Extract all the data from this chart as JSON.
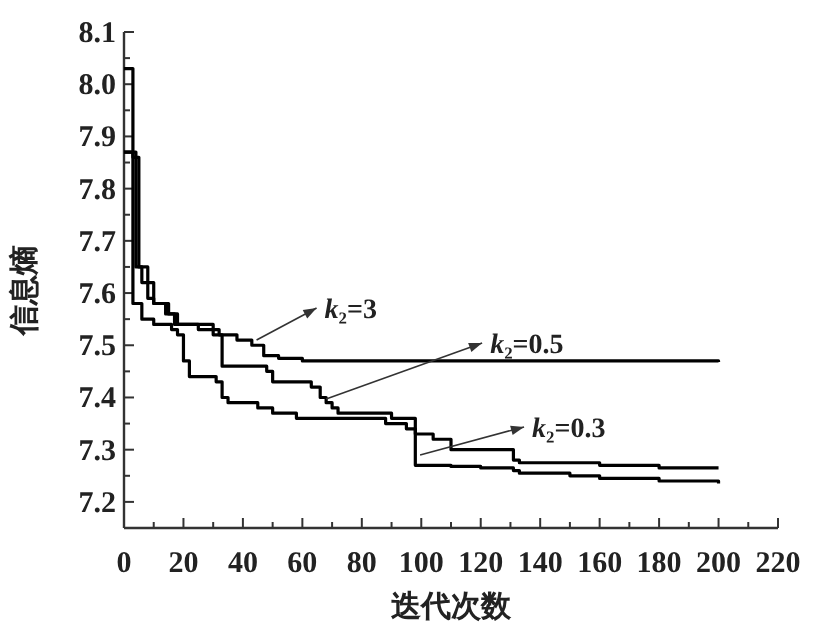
{
  "chart_data": {
    "type": "step",
    "xlabel": "迭代次数",
    "ylabel": "信息熵",
    "xlim": [
      0,
      220
    ],
    "ylim": [
      7.15,
      8.1
    ],
    "xticks": [
      0,
      20,
      40,
      60,
      80,
      100,
      120,
      140,
      160,
      180,
      200,
      220
    ],
    "yticks": [
      7.2,
      7.3,
      7.4,
      7.5,
      7.6,
      7.7,
      7.8,
      7.9,
      {
        "value": 8.0,
        "label": "8.0"
      },
      8.1
    ],
    "line_style": "solid",
    "grid": false,
    "annotations": [
      {
        "text": "k₂=3",
        "x": 44.6,
        "y": 7.51
      },
      {
        "text": "k₂=0.5",
        "x": 68,
        "y": 7.397
      },
      {
        "text": "k₂=0.3",
        "x": 99.6,
        "y": 7.29
      }
    ],
    "series": [
      {
        "color": "#000000",
        "x": [
          0,
          3,
          5,
          8,
          10,
          15,
          17,
          25,
          32,
          38,
          43,
          47,
          52,
          60,
          100,
          150,
          200
        ],
        "values": [
          8.03,
          7.86,
          7.65,
          7.62,
          7.58,
          7.56,
          7.54,
          7.53,
          7.52,
          7.51,
          7.5,
          7.48,
          7.475,
          7.47,
          7.47,
          7.47,
          7.468
        ]
      },
      {
        "color": "#000000",
        "x": [
          0,
          4,
          6,
          8,
          10,
          14,
          18,
          30,
          33,
          48,
          50,
          63,
          66,
          68,
          70,
          72,
          90,
          98,
          110,
          120,
          131,
          133,
          150,
          160,
          180,
          200
        ],
        "values": [
          7.87,
          7.65,
          7.62,
          7.59,
          7.58,
          7.56,
          7.54,
          7.52,
          7.46,
          7.45,
          7.43,
          7.42,
          7.4,
          7.39,
          7.38,
          7.37,
          7.36,
          7.27,
          7.268,
          7.265,
          7.26,
          7.255,
          7.25,
          7.245,
          7.24,
          7.235
        ]
      },
      {
        "color": "#000000",
        "x": [
          0,
          3,
          6,
          10,
          16,
          18,
          20,
          22,
          31,
          33,
          35,
          45,
          50,
          58,
          65,
          88,
          95,
          98,
          104,
          110,
          131,
          133,
          160,
          180,
          200
        ],
        "values": [
          7.87,
          7.58,
          7.55,
          7.54,
          7.53,
          7.52,
          7.47,
          7.44,
          7.43,
          7.4,
          7.39,
          7.38,
          7.37,
          7.36,
          7.36,
          7.35,
          7.34,
          7.33,
          7.32,
          7.3,
          7.28,
          7.275,
          7.27,
          7.265,
          7.265
        ]
      }
    ]
  }
}
